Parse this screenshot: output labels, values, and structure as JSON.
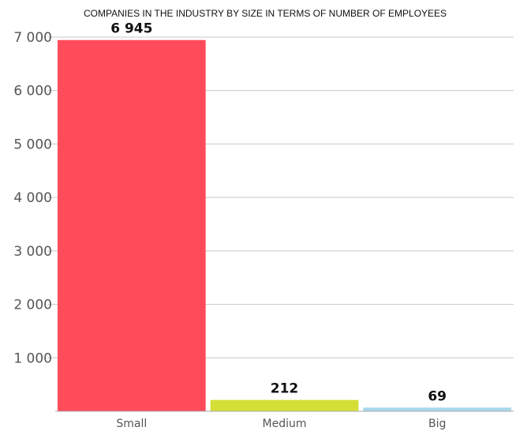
{
  "chart_data": {
    "type": "bar",
    "title": "COMPANIES IN THE INDUSTRY BY SIZE IN TERMS OF NUMBER OF EMPLOYEES",
    "categories": [
      "Small",
      "Medium",
      "Big"
    ],
    "values": [
      6945,
      212,
      69
    ],
    "data_labels": [
      "6 945",
      "212",
      "69"
    ],
    "colors": [
      "#ff4b5a",
      "#d4de36",
      "#a8d8ea"
    ],
    "ylim": [
      0,
      7000
    ],
    "yticks": [
      1000,
      2000,
      3000,
      4000,
      5000,
      6000,
      7000
    ],
    "ytick_labels": [
      "1 000",
      "2 000",
      "3 000",
      "4 000",
      "5 000",
      "6 000",
      "7 000"
    ],
    "xlabel": "",
    "ylabel": "",
    "grid": true,
    "legend": "none"
  }
}
